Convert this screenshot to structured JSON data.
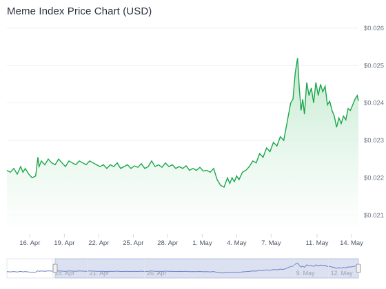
{
  "chart_data": {
    "type": "area",
    "title": "Meme Index Price Chart (USD)",
    "xlabel": "",
    "ylabel": "",
    "ylim": [
      0.0205,
      0.0262
    ],
    "y_ticks": [
      "$0.026",
      "$0.025",
      "$0.024",
      "$0.023",
      "$0.022",
      "$0.021"
    ],
    "y_tick_values": [
      0.026,
      0.025,
      0.024,
      0.023,
      0.022,
      0.021
    ],
    "x_ticks": [
      "16. Apr",
      "19. Apr",
      "22. Apr",
      "25. Apr",
      "28. Apr",
      "1. May",
      "4. May",
      "7. May",
      "11. May",
      "14. May"
    ],
    "x_tick_days": [
      2,
      5,
      8,
      11,
      14,
      17,
      20,
      23,
      27,
      30
    ],
    "x_range_days": [
      0.0,
      30.6
    ],
    "grid": true,
    "legend": "none",
    "navigator": {
      "ticks": [
        "18. Apr",
        "21. Apr",
        "26. Apr",
        "9. May",
        "12. May"
      ],
      "tick_days": [
        4,
        7,
        12,
        25,
        28
      ],
      "window_days": [
        4.2,
        30.6
      ]
    },
    "series": [
      {
        "values_note": "",
        "x": [
          0.0,
          0.3,
          0.6,
          0.9,
          1.2,
          1.4,
          1.6,
          1.9,
          2.2,
          2.5,
          2.7,
          2.8,
          3.0,
          3.3,
          3.6,
          3.9,
          4.2,
          4.5,
          4.8,
          5.1,
          5.4,
          5.7,
          6.0,
          6.3,
          6.6,
          6.9,
          7.2,
          7.5,
          7.8,
          8.1,
          8.4,
          8.7,
          9.0,
          9.3,
          9.6,
          9.9,
          10.2,
          10.5,
          10.8,
          11.1,
          11.4,
          11.7,
          12.0,
          12.3,
          12.6,
          12.9,
          13.2,
          13.5,
          13.8,
          14.1,
          14.4,
          14.7,
          15.0,
          15.3,
          15.6,
          15.9,
          16.2,
          16.5,
          16.8,
          17.1,
          17.4,
          17.7,
          18.0,
          18.3,
          18.6,
          18.9,
          19.2,
          19.4,
          19.6,
          19.8,
          20.0,
          20.2,
          20.5,
          20.8,
          21.1,
          21.4,
          21.7,
          22.0,
          22.3,
          22.6,
          22.9,
          23.2,
          23.5,
          23.8,
          24.1,
          24.4,
          24.7,
          24.9,
          25.1,
          25.3,
          25.45,
          25.6,
          25.75,
          25.9,
          26.1,
          26.3,
          26.5,
          26.7,
          26.9,
          27.1,
          27.3,
          27.5,
          27.7,
          27.9,
          28.1,
          28.3,
          28.5,
          28.7,
          28.9,
          29.1,
          29.3,
          29.5,
          29.7,
          29.9,
          30.1,
          30.3,
          30.5,
          30.6
        ],
        "values": [
          0.0222,
          0.02215,
          0.02225,
          0.0221,
          0.0223,
          0.02215,
          0.02225,
          0.0221,
          0.022,
          0.02205,
          0.02255,
          0.0223,
          0.02245,
          0.02235,
          0.0225,
          0.0224,
          0.02235,
          0.0225,
          0.0224,
          0.0223,
          0.02245,
          0.0224,
          0.02235,
          0.02245,
          0.0224,
          0.02235,
          0.02245,
          0.0224,
          0.02235,
          0.0223,
          0.02235,
          0.02225,
          0.02235,
          0.0223,
          0.0224,
          0.02225,
          0.0223,
          0.02235,
          0.02225,
          0.02232,
          0.02228,
          0.02238,
          0.02225,
          0.0223,
          0.02245,
          0.0223,
          0.02235,
          0.02228,
          0.0224,
          0.0223,
          0.02235,
          0.02225,
          0.0223,
          0.02225,
          0.02232,
          0.0222,
          0.02225,
          0.0222,
          0.02228,
          0.02218,
          0.0222,
          0.02215,
          0.02225,
          0.02195,
          0.0218,
          0.02175,
          0.022,
          0.02185,
          0.022,
          0.0219,
          0.02205,
          0.02195,
          0.02215,
          0.0222,
          0.0223,
          0.02245,
          0.0224,
          0.02265,
          0.02255,
          0.0228,
          0.0227,
          0.02295,
          0.02285,
          0.0231,
          0.023,
          0.0235,
          0.024,
          0.0241,
          0.0248,
          0.0252,
          0.0244,
          0.0238,
          0.0241,
          0.0237,
          0.02455,
          0.0242,
          0.0244,
          0.024,
          0.02455,
          0.0242,
          0.0245,
          0.0243,
          0.02445,
          0.02395,
          0.02405,
          0.0238,
          0.02365,
          0.02335,
          0.0236,
          0.02345,
          0.02365,
          0.02355,
          0.02385,
          0.0238,
          0.02395,
          0.0241,
          0.0242,
          0.02405
        ]
      }
    ]
  },
  "colors": {
    "line": "#1aa64a",
    "area_top": "#bfe9cc",
    "grid": "#eceff3",
    "navigator_fill": "#d6dcef",
    "navigator_line": "#6b7fc2"
  }
}
